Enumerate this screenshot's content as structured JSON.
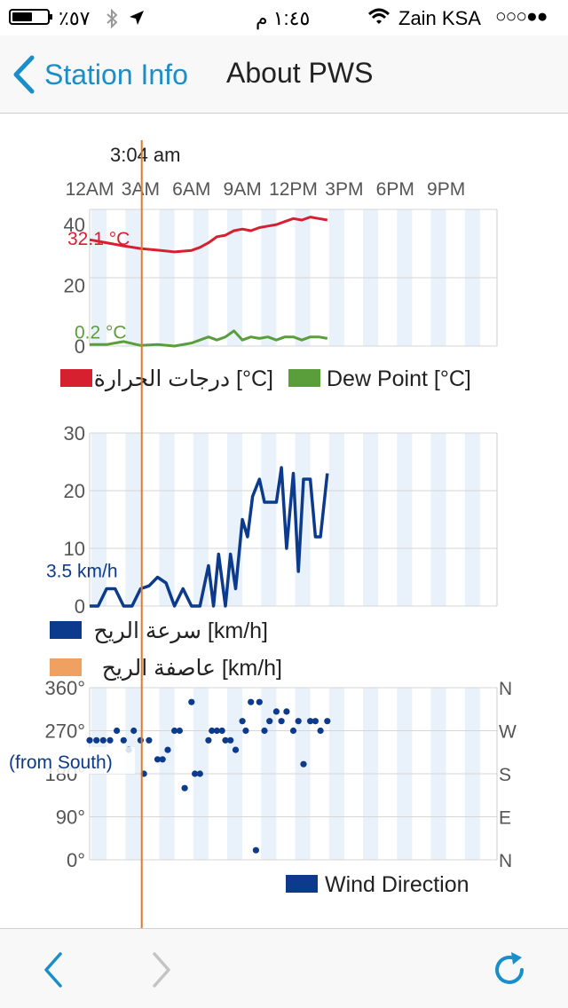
{
  "status_bar": {
    "battery_text": "٪٥٧",
    "battery_level": 0.57,
    "time": "١:٤٥ م",
    "carrier": "Zain KSA",
    "signal_dots": "○○○●●",
    "icons": [
      "battery-icon",
      "bluetooth-icon",
      "location-arrow-icon",
      "wifi-icon"
    ]
  },
  "nav": {
    "back_label": "Station Info",
    "title": "About PWS"
  },
  "toolbar": {
    "icons": [
      "back-arrow-icon",
      "forward-arrow-icon",
      "refresh-icon"
    ]
  },
  "chart_data": [
    {
      "type": "line",
      "cursor_time_label": "3:04 am",
      "time_ticks": [
        "12AM",
        "3AM",
        "6AM",
        "9AM",
        "12PM",
        "3PM",
        "6PM",
        "9PM"
      ],
      "x_range_hours": [
        0,
        24
      ],
      "cursor_hour": 3.07,
      "ylim": [
        0,
        45
      ],
      "y_ticks": [
        "40",
        "20",
        "0"
      ],
      "grid": true,
      "legend_position": "bottom",
      "cursor_readouts": [
        "32.1 °C",
        "0.2 °C"
      ],
      "series": [
        {
          "name": "درجات الحرارة [°C]",
          "color": "#d62030",
          "x": [
            0,
            1,
            2,
            3,
            4,
            5,
            6,
            6.5,
            7,
            7.5,
            8,
            8.5,
            9,
            9.5,
            10,
            10.5,
            11,
            11.5,
            12,
            12.5,
            13,
            13.5,
            14
          ],
          "y": [
            35,
            34,
            33,
            32.1,
            31.6,
            31,
            31.5,
            32.5,
            34,
            36,
            36.5,
            38,
            38.5,
            38,
            39,
            39.5,
            40,
            41,
            42,
            41.5,
            42.5,
            42,
            41.5
          ]
        },
        {
          "name": "Dew Point [°C]",
          "color": "#5a9e3c",
          "x": [
            0,
            1,
            2,
            3,
            4,
            5,
            6,
            6.5,
            7,
            7.5,
            8,
            8.5,
            9,
            9.5,
            10,
            10.5,
            11,
            11.5,
            12,
            12.5,
            13,
            13.5,
            14
          ],
          "y": [
            0.5,
            0.5,
            1.5,
            0.2,
            0.5,
            0,
            1,
            2,
            3,
            2,
            3,
            5,
            2,
            3,
            2.5,
            3,
            2,
            3,
            3,
            2,
            3,
            3,
            2.5
          ]
        }
      ]
    },
    {
      "type": "line",
      "ylim": [
        0,
        30
      ],
      "y_ticks": [
        "30",
        "20",
        "10",
        "0"
      ],
      "grid": true,
      "legend_position": "bottom",
      "cursor_readouts": [
        "3.5 km/h"
      ],
      "series": [
        {
          "name": "سرعة الريح [km/h]",
          "color": "#0c3a8c",
          "x": [
            0,
            0.5,
            1,
            1.5,
            2,
            2.5,
            3,
            3.5,
            4,
            4.5,
            5,
            5.5,
            6,
            6.5,
            7,
            7.3,
            7.6,
            8,
            8.3,
            8.6,
            9,
            9.3,
            9.6,
            10,
            10.3,
            10.6,
            11,
            11.3,
            11.6,
            12,
            12.3,
            12.6,
            13,
            13.3,
            13.6,
            14
          ],
          "y": [
            0,
            0,
            3,
            3,
            0,
            0,
            3,
            3.5,
            5,
            4,
            0,
            3,
            0,
            0,
            7,
            0,
            9,
            0,
            9,
            3,
            15,
            12,
            19,
            22,
            18,
            18,
            18,
            24,
            10,
            23,
            6,
            22,
            22,
            12,
            12,
            23
          ]
        },
        {
          "name": "عاصفة الريح [km/h]",
          "color": "#f0a060",
          "x": [],
          "y": []
        }
      ]
    },
    {
      "type": "scatter",
      "ylim": [
        0,
        360
      ],
      "y_ticks": [
        "360°",
        "270°",
        "180°",
        "90°",
        "0°"
      ],
      "y2_ticks": [
        "N",
        "W",
        "S",
        "E",
        "N"
      ],
      "grid": true,
      "legend_position": "bottom-right",
      "cursor_readouts": [
        "(from South)"
      ],
      "series": [
        {
          "name": "Wind Direction",
          "color": "#0c3a8c",
          "x": [
            0,
            0.4,
            0.8,
            1.2,
            1.6,
            2,
            2.3,
            2.6,
            3,
            3.2,
            3.5,
            4,
            4.3,
            4.6,
            5,
            5.3,
            5.6,
            6,
            6.2,
            6.5,
            7,
            7.2,
            7.5,
            7.8,
            8,
            8.3,
            8.6,
            9,
            9.2,
            9.5,
            9.8,
            10,
            10.3,
            10.6,
            11,
            11.3,
            11.6,
            12,
            12.3,
            12.6,
            13,
            13.3,
            13.6,
            14
          ],
          "y": [
            250,
            250,
            250,
            250,
            270,
            250,
            230,
            270,
            250,
            180,
            250,
            210,
            210,
            230,
            270,
            270,
            150,
            330,
            180,
            180,
            250,
            270,
            270,
            270,
            250,
            250,
            230,
            290,
            270,
            330,
            20,
            330,
            270,
            290,
            310,
            290,
            310,
            270,
            290,
            200,
            290,
            290,
            270,
            290
          ]
        }
      ]
    }
  ]
}
